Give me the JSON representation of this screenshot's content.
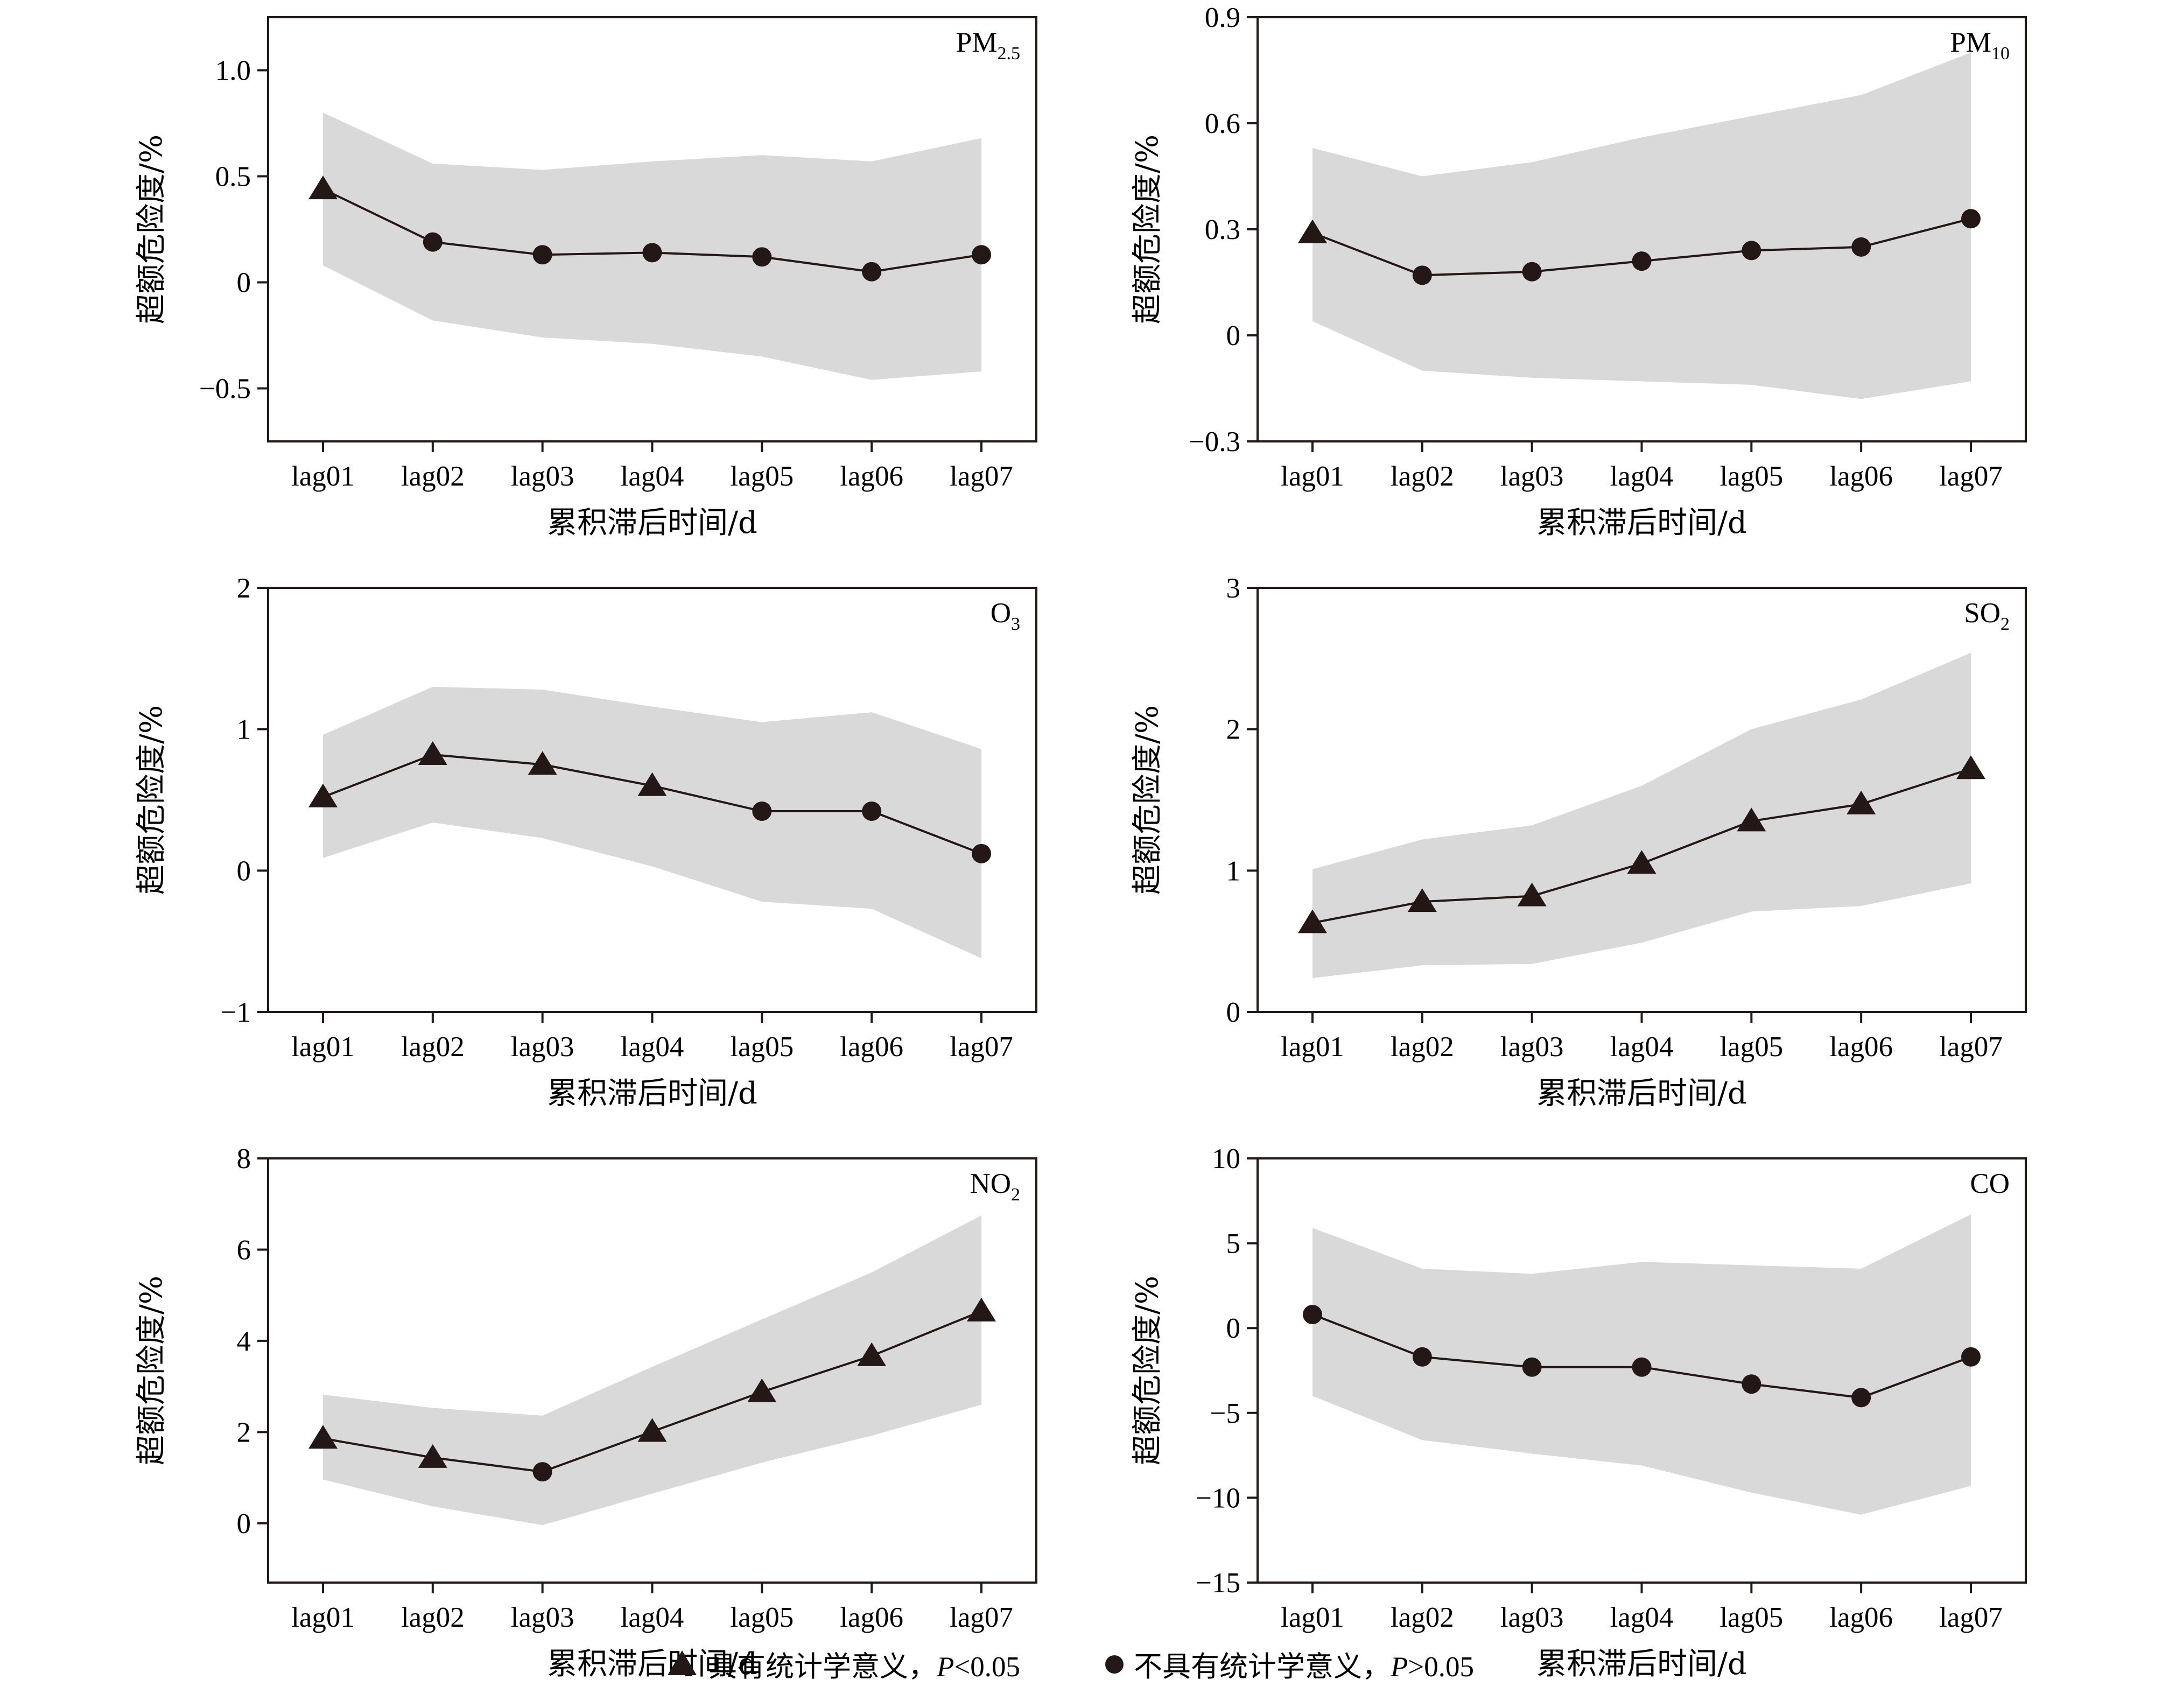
{
  "legend": {
    "significant_text": "具有统计学意义，",
    "significant_p": "P",
    "significant_cond": "<0.05",
    "nonsignificant_text": "不具有统计学意义，",
    "nonsignificant_p": "P",
    "nonsignificant_cond": ">0.05"
  },
  "colors": {
    "band": "#d9d9d9",
    "line": "#231815",
    "axis": "#231815"
  },
  "chart_data": [
    {
      "type": "line",
      "pollutant": "PM",
      "pollutant_sub": "2.5",
      "xlabel": "累积滞后时间/d",
      "ylabel": "超额危险度/%",
      "categories": [
        "lag01",
        "lag02",
        "lag03",
        "lag04",
        "lag05",
        "lag06",
        "lag07"
      ],
      "ylim": [
        -0.75,
        1.25
      ],
      "yticks": [
        -0.5,
        0,
        0.5,
        1.0
      ],
      "ytick_labels": [
        "−0.5",
        "0",
        "0.5",
        "1.0"
      ],
      "values": [
        0.44,
        0.19,
        0.13,
        0.14,
        0.12,
        0.05,
        0.13
      ],
      "lower": [
        0.08,
        -0.18,
        -0.26,
        -0.29,
        -0.35,
        -0.46,
        -0.42
      ],
      "upper": [
        0.8,
        0.56,
        0.53,
        0.57,
        0.6,
        0.57,
        0.68
      ],
      "significant": [
        true,
        false,
        false,
        false,
        false,
        false,
        false
      ]
    },
    {
      "type": "line",
      "pollutant": "PM",
      "pollutant_sub": "10",
      "xlabel": "累积滞后时间/d",
      "ylabel": "超额危险度/%",
      "categories": [
        "lag01",
        "lag02",
        "lag03",
        "lag04",
        "lag05",
        "lag06",
        "lag07"
      ],
      "ylim": [
        -0.3,
        0.9
      ],
      "yticks": [
        -0.3,
        0,
        0.3,
        0.6,
        0.9
      ],
      "ytick_labels": [
        "−0.3",
        "0",
        "0.3",
        "0.6",
        "0.9"
      ],
      "values": [
        0.29,
        0.17,
        0.18,
        0.21,
        0.24,
        0.25,
        0.33
      ],
      "lower": [
        0.04,
        -0.1,
        -0.12,
        -0.13,
        -0.14,
        -0.18,
        -0.13
      ],
      "upper": [
        0.53,
        0.45,
        0.49,
        0.56,
        0.62,
        0.68,
        0.8
      ],
      "significant": [
        true,
        false,
        false,
        false,
        false,
        false,
        false
      ]
    },
    {
      "type": "line",
      "pollutant": "O",
      "pollutant_sub": "3",
      "xlabel": "累积滞后时间/d",
      "ylabel": "超额危险度/%",
      "categories": [
        "lag01",
        "lag02",
        "lag03",
        "lag04",
        "lag05",
        "lag06",
        "lag07"
      ],
      "ylim": [
        -1,
        2
      ],
      "yticks": [
        -1,
        0,
        1,
        2
      ],
      "ytick_labels": [
        "−1",
        "0",
        "1",
        "2"
      ],
      "values": [
        0.52,
        0.82,
        0.75,
        0.6,
        0.42,
        0.42,
        0.12
      ],
      "lower": [
        0.09,
        0.34,
        0.23,
        0.03,
        -0.22,
        -0.27,
        -0.62
      ],
      "upper": [
        0.96,
        1.3,
        1.28,
        1.16,
        1.05,
        1.12,
        0.86
      ],
      "significant": [
        true,
        true,
        true,
        true,
        false,
        false,
        false
      ]
    },
    {
      "type": "line",
      "pollutant": "SO",
      "pollutant_sub": "2",
      "xlabel": "累积滞后时间/d",
      "ylabel": "超额危险度/%",
      "categories": [
        "lag01",
        "lag02",
        "lag03",
        "lag04",
        "lag05",
        "lag06",
        "lag07"
      ],
      "ylim": [
        0,
        3
      ],
      "yticks": [
        0,
        1,
        2,
        3
      ],
      "ytick_labels": [
        "0",
        "1",
        "2",
        "3"
      ],
      "values": [
        0.63,
        0.78,
        0.82,
        1.05,
        1.35,
        1.47,
        1.72
      ],
      "lower": [
        0.24,
        0.33,
        0.34,
        0.49,
        0.71,
        0.75,
        0.91
      ],
      "upper": [
        1.01,
        1.22,
        1.32,
        1.6,
        2.0,
        2.21,
        2.54
      ],
      "significant": [
        true,
        true,
        true,
        true,
        true,
        true,
        true
      ]
    },
    {
      "type": "line",
      "pollutant": "NO",
      "pollutant_sub": "2",
      "xlabel": "累积滞后时间/d",
      "ylabel": "超额危险度/%",
      "categories": [
        "lag01",
        "lag02",
        "lag03",
        "lag04",
        "lag05",
        "lag06",
        "lag07"
      ],
      "ylim": [
        -1.3,
        8
      ],
      "yticks": [
        0,
        2,
        4,
        6,
        8
      ],
      "ytick_labels": [
        "0",
        "2",
        "4",
        "6",
        "8"
      ],
      "values": [
        1.86,
        1.44,
        1.13,
        2.01,
        2.88,
        3.67,
        4.65
      ],
      "lower": [
        0.96,
        0.37,
        -0.04,
        0.65,
        1.33,
        1.92,
        2.6
      ],
      "upper": [
        2.82,
        2.53,
        2.36,
        3.43,
        4.47,
        5.5,
        6.75
      ],
      "significant": [
        true,
        true,
        false,
        true,
        true,
        true,
        true
      ]
    },
    {
      "type": "line",
      "pollutant": "CO",
      "pollutant_sub": "",
      "xlabel": "累积滞后时间/d",
      "ylabel": "超额危险度/%",
      "categories": [
        "lag01",
        "lag02",
        "lag03",
        "lag04",
        "lag05",
        "lag06",
        "lag07"
      ],
      "ylim": [
        -15,
        10
      ],
      "yticks": [
        -15,
        -10,
        -5,
        0,
        5,
        10
      ],
      "ytick_labels": [
        "−15",
        "−10",
        "−5",
        "0",
        "5",
        "10"
      ],
      "values": [
        0.8,
        -1.7,
        -2.3,
        -2.3,
        -3.3,
        -4.1,
        -1.7
      ],
      "lower": [
        -4.0,
        -6.6,
        -7.4,
        -8.1,
        -9.7,
        -11.0,
        -9.3
      ],
      "upper": [
        5.9,
        3.5,
        3.2,
        3.9,
        3.7,
        3.5,
        6.7
      ],
      "significant": [
        false,
        false,
        false,
        false,
        false,
        false,
        false
      ]
    }
  ]
}
